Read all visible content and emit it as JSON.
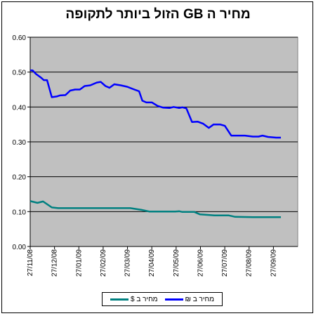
{
  "chart_data": {
    "type": "line",
    "title": "מחיר ה GB הזול ביותר לתקופה",
    "xlabel": "",
    "ylabel": "",
    "ylim": [
      0,
      0.6
    ],
    "y_ticks": [
      "0.00",
      "0.10",
      "0.20",
      "0.30",
      "0.40",
      "0.50",
      "0.60"
    ],
    "x_ticks": [
      "27/11/08",
      "27/12/08",
      "27/01/09",
      "27/02/09",
      "27/03/09",
      "27/04/09",
      "27/05/09",
      "27/06/09",
      "27/07/09",
      "27/08/09",
      "27/09/09"
    ],
    "x_range": [
      "2008-11-27",
      "2009-10-27"
    ],
    "grid": "horizontal",
    "plot_background": "#c0c0c0",
    "legend_position": "bottom",
    "series": [
      {
        "name": "מחיר ב ₪",
        "color": "#0000ff",
        "points": [
          [
            "2008-11-27",
            0.505
          ],
          [
            "2008-11-30",
            0.505
          ],
          [
            "2008-12-04",
            0.495
          ],
          [
            "2008-12-10",
            0.485
          ],
          [
            "2008-12-14",
            0.477
          ],
          [
            "2008-12-18",
            0.477
          ],
          [
            "2008-12-24",
            0.428
          ],
          [
            "2008-12-30",
            0.43
          ],
          [
            "2009-01-03",
            0.433
          ],
          [
            "2009-01-10",
            0.434
          ],
          [
            "2009-01-16",
            0.447
          ],
          [
            "2009-01-22",
            0.45
          ],
          [
            "2009-01-28",
            0.45
          ],
          [
            "2009-02-03",
            0.46
          ],
          [
            "2009-02-10",
            0.462
          ],
          [
            "2009-02-18",
            0.47
          ],
          [
            "2009-02-23",
            0.472
          ],
          [
            "2009-03-01",
            0.46
          ],
          [
            "2009-03-06",
            0.455
          ],
          [
            "2009-03-12",
            0.465
          ],
          [
            "2009-03-20",
            0.462
          ],
          [
            "2009-03-28",
            0.458
          ],
          [
            "2009-04-06",
            0.45
          ],
          [
            "2009-04-12",
            0.445
          ],
          [
            "2009-04-16",
            0.418
          ],
          [
            "2009-04-21",
            0.413
          ],
          [
            "2009-04-28",
            0.413
          ],
          [
            "2009-05-05",
            0.403
          ],
          [
            "2009-05-12",
            0.398
          ],
          [
            "2009-05-20",
            0.397
          ],
          [
            "2009-05-25",
            0.4
          ],
          [
            "2009-06-01",
            0.397
          ],
          [
            "2009-06-05",
            0.399
          ],
          [
            "2009-06-10",
            0.396
          ],
          [
            "2009-06-17",
            0.357
          ],
          [
            "2009-06-24",
            0.358
          ],
          [
            "2009-07-01",
            0.352
          ],
          [
            "2009-07-08",
            0.34
          ],
          [
            "2009-07-14",
            0.35
          ],
          [
            "2009-07-22",
            0.35
          ],
          [
            "2009-07-28",
            0.346
          ],
          [
            "2009-08-05",
            0.318
          ],
          [
            "2009-08-12",
            0.318
          ],
          [
            "2009-08-22",
            0.318
          ],
          [
            "2009-09-01",
            0.315
          ],
          [
            "2009-09-08",
            0.315
          ],
          [
            "2009-09-13",
            0.318
          ],
          [
            "2009-09-20",
            0.314
          ],
          [
            "2009-09-30",
            0.312
          ],
          [
            "2009-10-06",
            0.312
          ]
        ]
      },
      {
        "name": "מחיר ב $",
        "color": "#008080",
        "points": [
          [
            "2008-11-27",
            0.13
          ],
          [
            "2008-12-06",
            0.125
          ],
          [
            "2008-12-13",
            0.129
          ],
          [
            "2008-12-24",
            0.112
          ],
          [
            "2009-01-01",
            0.11
          ],
          [
            "2009-02-01",
            0.11
          ],
          [
            "2009-03-01",
            0.11
          ],
          [
            "2009-04-01",
            0.11
          ],
          [
            "2009-04-15",
            0.105
          ],
          [
            "2009-04-25",
            0.1
          ],
          [
            "2009-05-27",
            0.1
          ],
          [
            "2009-06-01",
            0.101
          ],
          [
            "2009-06-05",
            0.099
          ],
          [
            "2009-06-20",
            0.099
          ],
          [
            "2009-06-27",
            0.092
          ],
          [
            "2009-07-03",
            0.091
          ],
          [
            "2009-07-15",
            0.089
          ],
          [
            "2009-08-02",
            0.089
          ],
          [
            "2009-08-10",
            0.085
          ],
          [
            "2009-09-01",
            0.084
          ],
          [
            "2009-10-06",
            0.084
          ]
        ]
      }
    ]
  }
}
